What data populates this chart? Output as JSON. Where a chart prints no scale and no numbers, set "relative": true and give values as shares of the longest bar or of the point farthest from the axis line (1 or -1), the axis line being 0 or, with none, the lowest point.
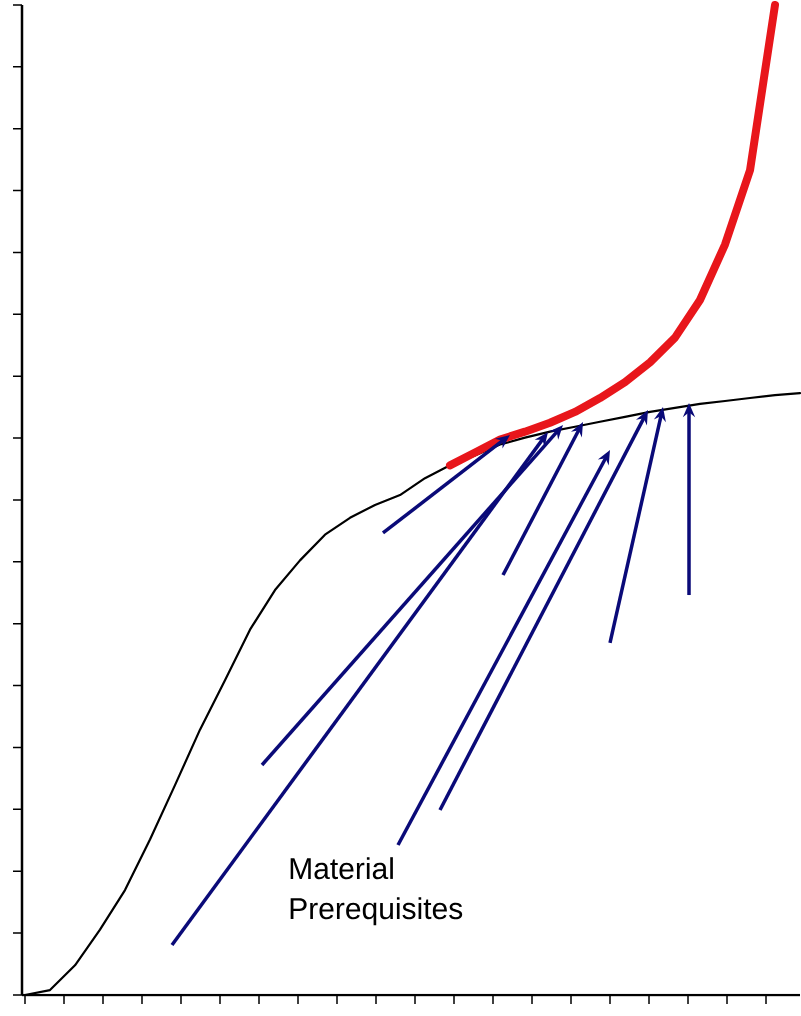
{
  "chart_data": {
    "type": "line",
    "relative": true,
    "categories": [
      null,
      null,
      null,
      null,
      null,
      null,
      null,
      null,
      null,
      null,
      null,
      null,
      null,
      null,
      null,
      null,
      null,
      null,
      null,
      null,
      null,
      null,
      null,
      null,
      null,
      null,
      null,
      null,
      null,
      null,
      null,
      null
    ],
    "series": [
      {
        "color": "#000000",
        "values": [
          0,
          0.005,
          0.03,
          0.066,
          0.106,
          0.157,
          0.212,
          0.268,
          0.318,
          0.369,
          0.409,
          0.439,
          0.465,
          0.482,
          0.495,
          0.505,
          0.522,
          0.535,
          0.545,
          0.556,
          0.563,
          0.569,
          0.574,
          0.579,
          0.584,
          0.589,
          0.593,
          0.597,
          0.6,
          0.603,
          0.606,
          0.608
        ]
      },
      {
        "color": "#e8161b",
        "values": [
          null,
          null,
          null,
          null,
          null,
          null,
          null,
          null,
          null,
          null,
          null,
          null,
          null,
          null,
          null,
          null,
          null,
          0.535,
          0.548,
          0.561,
          0.569,
          0.578,
          0.589,
          0.603,
          0.619,
          0.639,
          0.664,
          0.702,
          0.758,
          0.833,
          1.0,
          null
        ]
      }
    ],
    "annotations": [
      "Material Prerequisites"
    ]
  }
}
